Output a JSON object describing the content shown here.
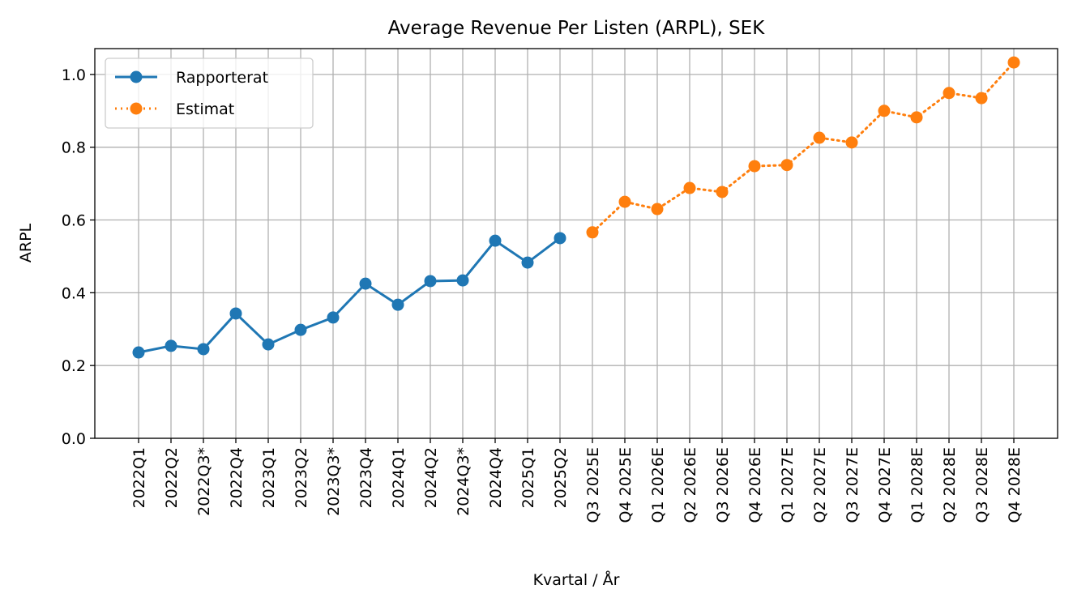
{
  "chart_data": {
    "type": "line",
    "title": "Average Revenue Per Listen (ARPL), SEK",
    "xlabel": "Kvartal / År",
    "ylabel": "ARPL",
    "categories": [
      "2022Q1",
      "2022Q2",
      "2022Q3*",
      "2022Q4",
      "2023Q1",
      "2023Q2",
      "2023Q3*",
      "2023Q4",
      "2024Q1",
      "2024Q2",
      "2024Q3*",
      "2024Q4",
      "2025Q1",
      "2025Q2",
      "Q3 2025E",
      "Q4 2025E",
      "Q1 2026E",
      "Q2 2026E",
      "Q3 2026E",
      "Q4 2026E",
      "Q1 2027E",
      "Q2 2027E",
      "Q3 2027E",
      "Q4 2027E",
      "Q1 2028E",
      "Q2 2028E",
      "Q3 2028E",
      "Q4 2028E"
    ],
    "series": [
      {
        "name": "Rapporterat",
        "color": "#1f77b4",
        "linestyle": "solid",
        "values": [
          0.236,
          0.254,
          0.245,
          0.343,
          0.258,
          0.298,
          0.332,
          0.425,
          0.367,
          0.432,
          0.434,
          0.543,
          0.483,
          0.55,
          null,
          null,
          null,
          null,
          null,
          null,
          null,
          null,
          null,
          null,
          null,
          null,
          null,
          null
        ]
      },
      {
        "name": "Estimat",
        "color": "#ff7f0e",
        "linestyle": "dotted",
        "values": [
          null,
          null,
          null,
          null,
          null,
          null,
          null,
          null,
          null,
          null,
          null,
          null,
          null,
          null,
          0.566,
          0.65,
          0.63,
          0.688,
          0.677,
          0.748,
          0.751,
          0.826,
          0.813,
          0.9,
          0.882,
          0.949,
          0.935,
          1.033
        ]
      }
    ],
    "ylim": [
      0,
      1.071
    ],
    "yticks": [
      {
        "value": 0,
        "label": "0.0"
      },
      {
        "value": 0.2,
        "label": "0.2"
      },
      {
        "value": 0.4,
        "label": "0.4"
      },
      {
        "value": 0.6,
        "label": "0.6"
      },
      {
        "value": 0.8,
        "label": "0.8"
      },
      {
        "value": 1,
        "label": "1.0"
      }
    ],
    "grid": true,
    "legend": "upper left"
  }
}
